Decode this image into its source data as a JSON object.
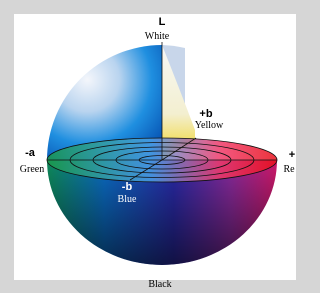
{
  "axes": {
    "top": {
      "symbol": "L",
      "name": "White"
    },
    "plus_b": {
      "symbol": "+b",
      "name": "Yellow"
    },
    "minus_a": {
      "symbol": "-a",
      "name": "Green"
    },
    "plus_a": {
      "symbol": "+",
      "name": "Re"
    },
    "minus_b": {
      "symbol": "-b",
      "name": "Blue"
    },
    "bottom": {
      "name": "Black"
    }
  }
}
